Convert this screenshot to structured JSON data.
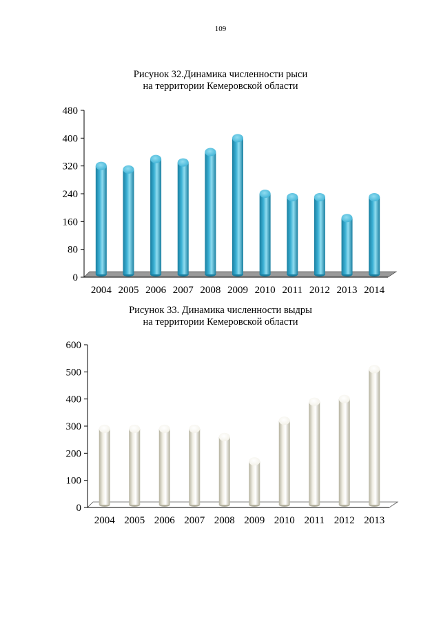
{
  "page_number": "109",
  "colors": {
    "lynx_bar": "#3bb0d4",
    "lynx_bar_dark": "#1a7fa0",
    "otter_bar": "#f2f0e6",
    "otter_bar_dark": "#b5b2a0",
    "floor": "#9a9a9a"
  },
  "figures": [
    {
      "title_line1": "Рисунок 32.Динамика численности рыси",
      "title_line2": "на территории Кемеровской области"
    },
    {
      "title_line1": "Рисунок 33. Динамика численности выдры",
      "title_line2": "на территории Кемеровской области"
    }
  ],
  "chart_data": [
    {
      "type": "bar",
      "title": "Рисунок 32.Динамика численности рыси на территории Кемеровской области",
      "categories": [
        "2004",
        "2005",
        "2006",
        "2007",
        "2008",
        "2009",
        "2010",
        "2011",
        "2012",
        "2013",
        "2014"
      ],
      "values": [
        320,
        310,
        340,
        330,
        360,
        400,
        240,
        230,
        230,
        170,
        230
      ],
      "ylim": [
        0,
        480
      ],
      "yticks": [
        "0",
        "80",
        "160",
        "240",
        "320",
        "400",
        "480"
      ],
      "xlabel": "",
      "ylabel": "",
      "grid": false,
      "legend": "none"
    },
    {
      "type": "bar",
      "title": "Рисунок 33. Динамика численности выдры на территории Кемеровской области",
      "categories": [
        "2004",
        "2005",
        "2006",
        "2007",
        "2008",
        "2009",
        "2010",
        "2011",
        "2012",
        "2013"
      ],
      "values": [
        290,
        290,
        290,
        290,
        260,
        170,
        320,
        390,
        400,
        510
      ],
      "ylim": [
        0,
        600
      ],
      "yticks": [
        "0",
        "100",
        "200",
        "300",
        "400",
        "500",
        "600"
      ],
      "xlabel": "",
      "ylabel": "",
      "grid": false,
      "legend": "none"
    }
  ]
}
